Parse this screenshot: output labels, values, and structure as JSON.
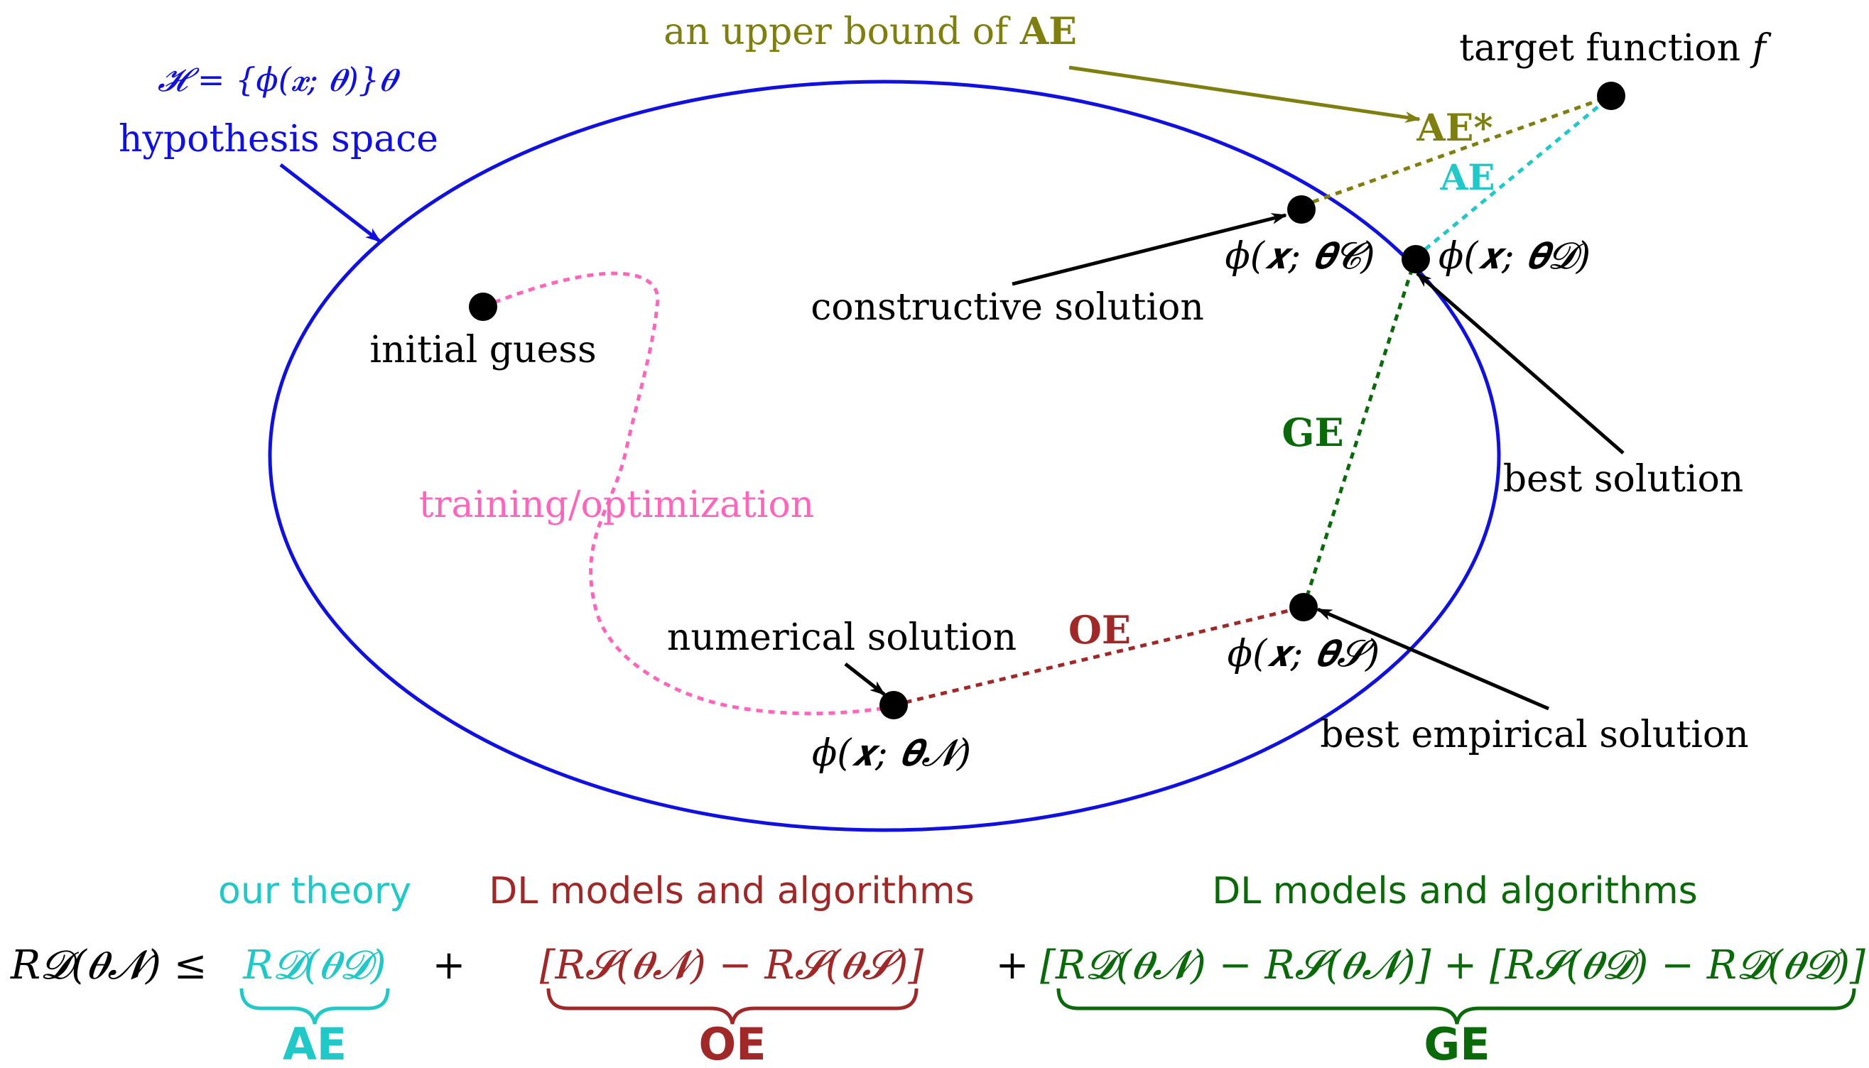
{
  "colors": {
    "hypothesis": "#1010e0",
    "upper_bound": "#7f7f10",
    "ae": "#20c8c8",
    "ge": "#0a6a0a",
    "oe": "#a02828",
    "training": "#ff66bb",
    "ink": "#000000"
  },
  "labels": {
    "hypothesis_formula": "𝓗 = {ϕ(𝒙; 𝜽)}𝜽",
    "hypothesis_space": "hypothesis space",
    "upper_bound_prefix": "an upper bound of ",
    "upper_bound_ae": "AE",
    "target_function": "target function ",
    "target_f": "f",
    "ae_star": "AE*",
    "ae": "AE",
    "ge": "GE",
    "oe": "OE",
    "initial_guess": "initial guess",
    "training": "training/optimization",
    "constructive_solution": "constructive solution",
    "best_solution": "best solution",
    "numerical_solution": "numerical solution",
    "best_empirical_solution": "best empirical solution",
    "phi_c": "ϕ(𝒙; 𝜽𝓒)",
    "phi_d": "ϕ(𝒙; 𝜽𝓓)",
    "phi_s": "ϕ(𝒙; 𝜽𝓢)",
    "phi_n": "ϕ(𝒙; 𝜽𝓝)"
  },
  "equation": {
    "lhs": "R𝓓(𝜽𝓝) ≤",
    "term_ae": "R𝓓(𝜽𝓓)",
    "plus1": "+",
    "term_oe": "[R𝓢(𝜽𝓝) − R𝓢(𝜽𝓢)]",
    "plus2": "+",
    "term_ge": "[R𝓓(𝜽𝓝) − R𝓢(𝜽𝓝)] + [R𝓢(𝜽𝓓) − R𝓓(𝜽𝓓)]",
    "above_ae": "our theory",
    "above_oe": "DL models and algorithms",
    "above_ge": "DL models and algorithms",
    "below_ae": "AE",
    "below_oe": "OE",
    "below_ge": "GE"
  }
}
